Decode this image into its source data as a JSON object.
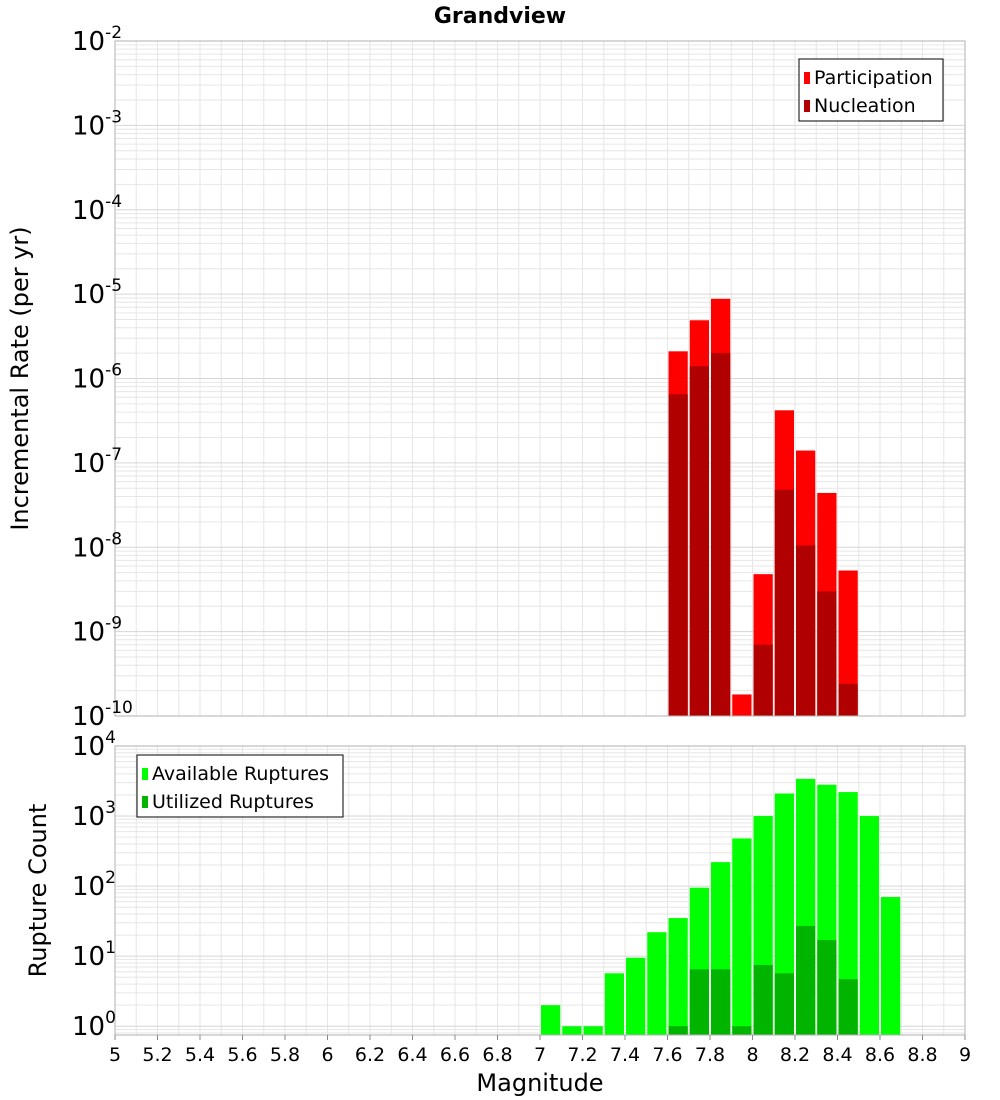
{
  "title": "Grandview",
  "colors": {
    "participation": "#ff0000",
    "nucleation": "#b00000",
    "available": "#00ff00",
    "utilized": "#00b400",
    "grid": "#e6e6e6",
    "frame": "#b0b0b0"
  },
  "chart_data": [
    {
      "type": "bar",
      "title": "Grandview",
      "xlabel": "Magnitude",
      "ylabel": "Incremental Rate (per yr)",
      "xlim": [
        5,
        9
      ],
      "ylim": [
        1e-10,
        0.01
      ],
      "yscale": "log",
      "legend": "top-right",
      "bin_width": 0.1,
      "x_ticks": [
        "5",
        "5.2",
        "5.4",
        "5.6",
        "5.8",
        "6",
        "6.2",
        "6.4",
        "6.6",
        "6.8",
        "7",
        "7.2",
        "7.4",
        "7.6",
        "7.8",
        "8",
        "8.2",
        "8.4",
        "8.6",
        "8.8",
        "9"
      ],
      "y_ticks": [
        {
          "base": "10",
          "exp": "-2",
          "value": 0.01
        },
        {
          "base": "10",
          "exp": "-3",
          "value": 0.001
        },
        {
          "base": "10",
          "exp": "-4",
          "value": 0.0001
        },
        {
          "base": "10",
          "exp": "-5",
          "value": 1e-05
        },
        {
          "base": "10",
          "exp": "-6",
          "value": 1e-06
        },
        {
          "base": "10",
          "exp": "-7",
          "value": 1e-07
        },
        {
          "base": "10",
          "exp": "-8",
          "value": 1e-08
        },
        {
          "base": "10",
          "exp": "-9",
          "value": 1e-09
        },
        {
          "base": "10",
          "exp": "-10",
          "value": 1e-10
        }
      ],
      "series": [
        {
          "name": "Participation",
          "color": "#ff0000",
          "x": [
            7.65,
            7.75,
            7.85,
            7.95,
            8.05,
            8.15,
            8.25,
            8.35,
            8.45
          ],
          "values": [
            2.1e-06,
            4.9e-06,
            8.8e-06,
            1.8e-10,
            4.8e-09,
            4.2e-07,
            1.4e-07,
            4.4e-08,
            5.3e-09
          ]
        },
        {
          "name": "Nucleation",
          "color": "#b00000",
          "x": [
            7.65,
            7.75,
            7.85,
            7.95,
            8.05,
            8.15,
            8.25,
            8.35,
            8.45
          ],
          "values": [
            6.5e-07,
            1.4e-06,
            2e-06,
            0,
            7e-10,
            4.8e-08,
            1.05e-08,
            3e-09,
            2.4e-10
          ]
        }
      ]
    },
    {
      "type": "bar",
      "xlabel": "Magnitude",
      "ylabel": "Rupture Count",
      "xlim": [
        5,
        9
      ],
      "ylim": [
        0.75,
        10000
      ],
      "yscale": "log",
      "legend": "top-left",
      "bin_width": 0.1,
      "x_ticks": [
        "5",
        "5.2",
        "5.4",
        "5.6",
        "5.8",
        "6",
        "6.2",
        "6.4",
        "6.6",
        "6.8",
        "7",
        "7.2",
        "7.4",
        "7.6",
        "7.8",
        "8",
        "8.2",
        "8.4",
        "8.6",
        "8.8",
        "9"
      ],
      "y_ticks": [
        {
          "base": "10",
          "exp": "4",
          "value": 10000
        },
        {
          "base": "10",
          "exp": "3",
          "value": 1000
        },
        {
          "base": "10",
          "exp": "2",
          "value": 100
        },
        {
          "base": "10",
          "exp": "1",
          "value": 10
        },
        {
          "base": "10",
          "exp": "0",
          "value": 1
        }
      ],
      "series": [
        {
          "name": "Available Ruptures",
          "color": "#00ff00",
          "x": [
            7.05,
            7.15,
            7.25,
            7.35,
            7.45,
            7.55,
            7.65,
            7.75,
            7.85,
            7.95,
            8.05,
            8.15,
            8.25,
            8.35,
            8.45,
            8.55,
            8.65
          ],
          "values": [
            2,
            1,
            1,
            5.7,
            9.5,
            22,
            35,
            95,
            220,
            480,
            1000,
            2100,
            3400,
            2800,
            2200,
            1000,
            70
          ]
        },
        {
          "name": "Utilized Ruptures",
          "color": "#00b400",
          "x": [
            7.65,
            7.75,
            7.85,
            7.95,
            8.05,
            8.15,
            8.25,
            8.35,
            8.45
          ],
          "values": [
            1,
            6.5,
            6.5,
            1,
            7.5,
            5.7,
            27,
            17,
            4.7
          ]
        }
      ]
    }
  ]
}
